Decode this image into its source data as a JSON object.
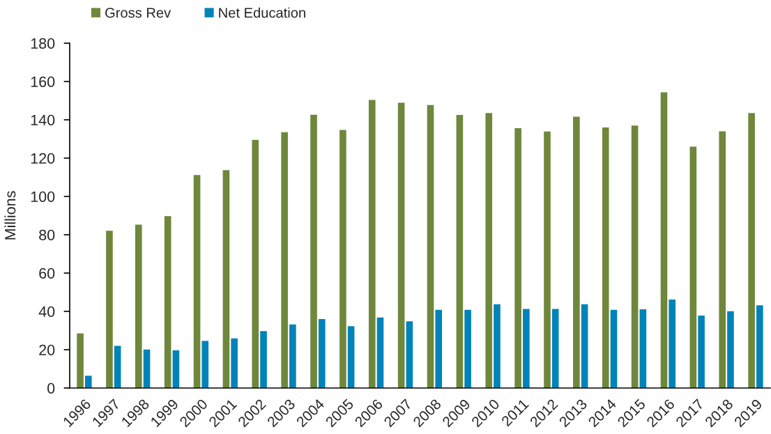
{
  "chart_data": {
    "type": "bar",
    "ylabel": "Millions",
    "categories": [
      "1996",
      "1997",
      "1998",
      "1999",
      "2000",
      "2001",
      "2002",
      "2003",
      "2004",
      "2005",
      "2006",
      "2007",
      "2008",
      "2009",
      "2010",
      "2011",
      "2012",
      "2013",
      "2014",
      "2015",
      "2016",
      "2017",
      "2018",
      "2019"
    ],
    "series": [
      {
        "name": "Gross Rev",
        "color": "#6e873b",
        "values": [
          28.5,
          82.1,
          85.3,
          89.7,
          111.2,
          113.7,
          129.5,
          133.5,
          142.6,
          134.7,
          150.4,
          148.9,
          147.7,
          142.5,
          143.5,
          135.6,
          133.9,
          141.6,
          136.0,
          137.0,
          154.4,
          126.0,
          134.0,
          143.5
        ]
      },
      {
        "name": "Net Education",
        "color": "#0083b9",
        "values": [
          6.4,
          22.0,
          20.1,
          19.7,
          24.6,
          25.9,
          29.7,
          33.2,
          36.0,
          32.3,
          36.8,
          34.8,
          40.8,
          40.8,
          43.7,
          41.3,
          41.3,
          43.7,
          40.8,
          41.1,
          46.2,
          37.8,
          40.1,
          43.2
        ]
      }
    ],
    "ylim": [
      0,
      180
    ],
    "yticks": [
      0,
      20,
      40,
      60,
      80,
      100,
      120,
      140,
      160,
      180
    ],
    "grid": false,
    "legend": "top left"
  }
}
